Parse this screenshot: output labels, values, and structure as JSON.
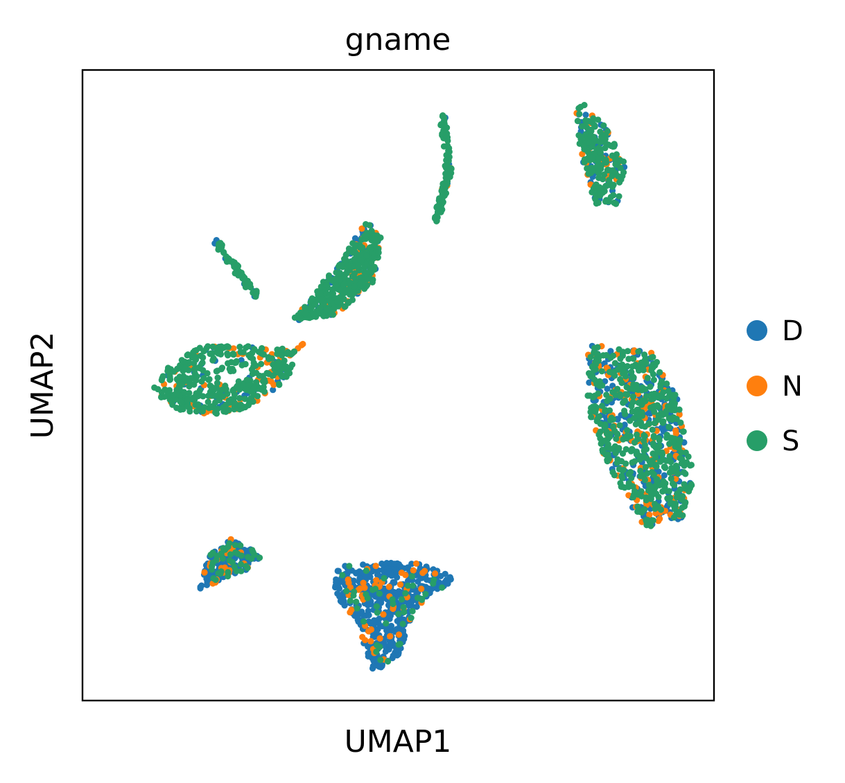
{
  "chart_data": {
    "type": "scatter",
    "title": "gname",
    "xlabel": "UMAP1",
    "ylabel": "UMAP2",
    "xticks": [],
    "yticks": [],
    "grid": false,
    "legend_position": "right",
    "colors": {
      "D": "#1f77b4",
      "N": "#ff7f0e",
      "S": "#279e68"
    },
    "series": [
      {
        "name": "D",
        "color": "#1f77b4"
      },
      {
        "name": "N",
        "color": "#ff7f0e"
      },
      {
        "name": "S",
        "color": "#279e68"
      }
    ],
    "clusters": [
      {
        "id": "left-large",
        "mix": {
          "D": 0.12,
          "N": 0.12,
          "S": 0.76
        },
        "shape": "crescent",
        "points": [
          [
            -0.78,
            0.12
          ],
          [
            -0.72,
            0.05
          ],
          [
            -0.62,
            0.02
          ],
          [
            -0.5,
            0.04
          ],
          [
            -0.4,
            0.1
          ],
          [
            -0.33,
            0.19
          ],
          [
            -0.35,
            0.26
          ],
          [
            -0.47,
            0.27
          ],
          [
            -0.62,
            0.27
          ],
          [
            -0.73,
            0.2
          ]
        ]
      },
      {
        "id": "stalk",
        "mix": {
          "D": 0.25,
          "N": 0.0,
          "S": 0.75
        },
        "shape": "line",
        "points": [
          [
            -0.58,
            0.65
          ],
          [
            -0.45,
            0.45
          ]
        ]
      },
      {
        "id": "center-upper",
        "mix": {
          "D": 0.12,
          "N": 0.13,
          "S": 0.75
        },
        "shape": "blob",
        "points": [
          [
            -0.34,
            0.36
          ],
          [
            -0.18,
            0.58
          ],
          [
            -0.1,
            0.72
          ],
          [
            -0.05,
            0.66
          ],
          [
            -0.08,
            0.5
          ],
          [
            -0.2,
            0.38
          ]
        ]
      },
      {
        "id": "thin-top",
        "mix": {
          "D": 0.12,
          "N": 0.08,
          "S": 0.8
        },
        "shape": "line",
        "points": [
          [
            0.14,
            1.1
          ],
          [
            0.16,
            0.9
          ],
          [
            0.12,
            0.72
          ]
        ]
      },
      {
        "id": "top-right",
        "mix": {
          "D": 0.15,
          "N": 0.12,
          "S": 0.73
        },
        "shape": "blob",
        "points": [
          [
            0.58,
            1.15
          ],
          [
            0.66,
            1.05
          ],
          [
            0.72,
            0.92
          ],
          [
            0.7,
            0.78
          ],
          [
            0.62,
            0.78
          ],
          [
            0.58,
            0.95
          ],
          [
            0.56,
            1.1
          ]
        ]
      },
      {
        "id": "right-large",
        "mix": {
          "D": 0.3,
          "N": 0.15,
          "S": 0.55
        },
        "shape": "blob",
        "points": [
          [
            0.6,
            0.28
          ],
          [
            0.8,
            0.25
          ],
          [
            0.88,
            0.1
          ],
          [
            0.94,
            -0.2
          ],
          [
            0.9,
            -0.35
          ],
          [
            0.78,
            -0.38
          ],
          [
            0.66,
            -0.15
          ],
          [
            0.6,
            0.05
          ]
        ]
      },
      {
        "id": "bottom-left",
        "mix": {
          "D": 0.7,
          "N": 0.12,
          "S": 0.18
        },
        "shape": "blob",
        "points": [
          [
            -0.63,
            -0.6
          ],
          [
            -0.47,
            -0.53
          ],
          [
            -0.43,
            -0.48
          ],
          [
            -0.53,
            -0.42
          ],
          [
            -0.6,
            -0.48
          ]
        ]
      },
      {
        "id": "bottom-center",
        "mix": {
          "D": 0.84,
          "N": 0.08,
          "S": 0.08
        },
        "shape": "blob",
        "points": [
          [
            -0.2,
            -0.52
          ],
          [
            0.05,
            -0.5
          ],
          [
            0.18,
            -0.56
          ],
          [
            0.05,
            -0.68
          ],
          [
            0.0,
            -0.84
          ],
          [
            -0.08,
            -0.9
          ],
          [
            -0.13,
            -0.72
          ],
          [
            -0.2,
            -0.62
          ]
        ]
      }
    ]
  }
}
